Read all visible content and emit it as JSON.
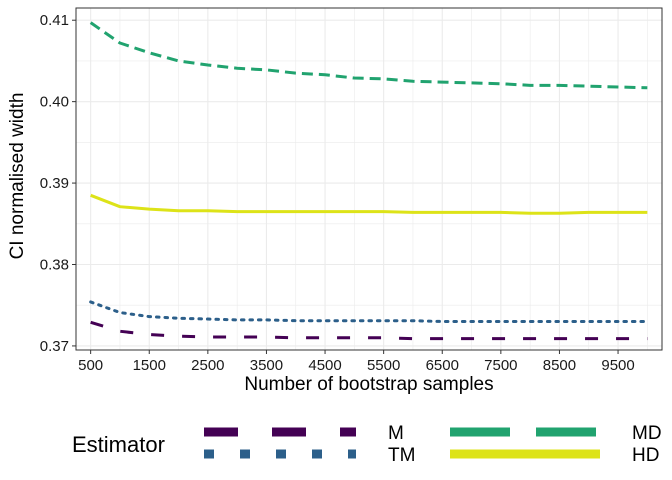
{
  "chart_data": {
    "type": "line",
    "xlabel": "Number of bootstrap samples",
    "ylabel": "CI normalised width",
    "xlim": [
      250,
      10250
    ],
    "ylim": [
      0.3695,
      0.4115
    ],
    "x_ticks": [
      500,
      1500,
      2500,
      3500,
      4500,
      5500,
      6500,
      7500,
      8500,
      9500
    ],
    "y_ticks": [
      0.37,
      0.38,
      0.39,
      0.4,
      0.41
    ],
    "y_tick_labels": [
      "0.37",
      "0.38",
      "0.39",
      "0.40",
      "0.41"
    ],
    "grid": true,
    "legend": {
      "title": "Estimator",
      "position": "bottom"
    },
    "x": [
      500,
      1000,
      1500,
      2000,
      2500,
      3000,
      3500,
      4000,
      4500,
      5000,
      5500,
      6000,
      6500,
      7000,
      7500,
      8000,
      8500,
      9000,
      9500,
      10000
    ],
    "series": [
      {
        "name": "M",
        "color": "#440154",
        "dash": "long",
        "values": [
          0.3729,
          0.3718,
          0.3714,
          0.3712,
          0.3711,
          0.3711,
          0.3711,
          0.371,
          0.371,
          0.371,
          0.371,
          0.3709,
          0.3709,
          0.3709,
          0.3709,
          0.3709,
          0.3709,
          0.3709,
          0.3709,
          0.3709
        ]
      },
      {
        "name": "MD",
        "color": "#21A36F",
        "dash": "dashed",
        "values": [
          0.4097,
          0.4072,
          0.406,
          0.405,
          0.4045,
          0.4041,
          0.4039,
          0.4035,
          0.4033,
          0.4029,
          0.4028,
          0.4025,
          0.4024,
          0.4023,
          0.4022,
          0.402,
          0.402,
          0.4019,
          0.4018,
          0.4017
        ]
      },
      {
        "name": "TM",
        "color": "#2C5F8A",
        "dash": "dotted",
        "values": [
          0.3754,
          0.3741,
          0.3736,
          0.3734,
          0.3733,
          0.3732,
          0.3732,
          0.3731,
          0.3731,
          0.3731,
          0.3731,
          0.3731,
          0.373,
          0.373,
          0.373,
          0.373,
          0.373,
          0.373,
          0.373,
          0.373
        ]
      },
      {
        "name": "HD",
        "color": "#DDE318",
        "dash": "solid",
        "values": [
          0.3885,
          0.3871,
          0.3868,
          0.3866,
          0.3866,
          0.3865,
          0.3865,
          0.3865,
          0.3865,
          0.3865,
          0.3865,
          0.3864,
          0.3864,
          0.3864,
          0.3864,
          0.3863,
          0.3863,
          0.3864,
          0.3864,
          0.3864
        ]
      }
    ]
  }
}
